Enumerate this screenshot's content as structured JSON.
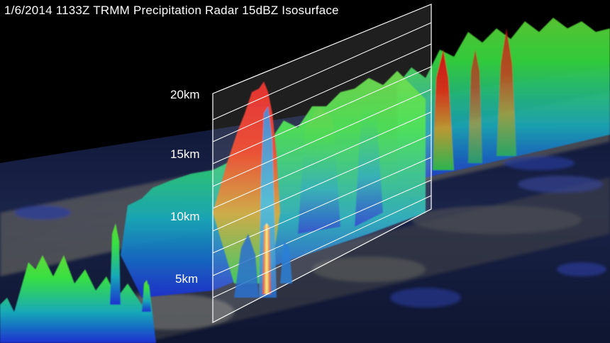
{
  "title": "1/6/2014 1133Z TRMM Precipitation Radar 15dBZ Isosurface",
  "altitude_labels": [
    "20km",
    "15km",
    "10km",
    "5km"
  ]
}
